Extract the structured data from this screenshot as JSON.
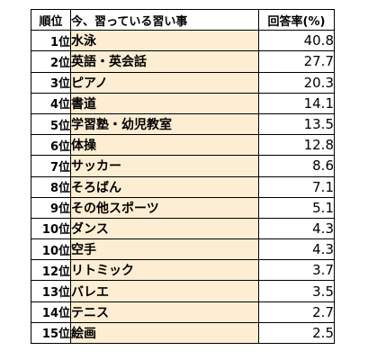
{
  "header": {
    "rank": "順位",
    "item": "今、習っている習い事",
    "rate": "回答率(%)"
  },
  "rows": [
    {
      "rank": "1位",
      "item": "水泳",
      "rate": "40.8"
    },
    {
      "rank": "2位",
      "item": "英語・英会話",
      "rate": "27.7"
    },
    {
      "rank": "3位",
      "item": "ピアノ",
      "rate": "20.3"
    },
    {
      "rank": "4位",
      "item": "書道",
      "rate": "14.1"
    },
    {
      "rank": "5位",
      "item": "学習塾・幼児教室",
      "rate": "13.5"
    },
    {
      "rank": "6位",
      "item": "体操",
      "rate": "12.8"
    },
    {
      "rank": "7位",
      "item": "サッカー",
      "rate": "8.6"
    },
    {
      "rank": "8位",
      "item": "そろばん",
      "rate": "7.1"
    },
    {
      "rank": "9位",
      "item": "その他スポーツ",
      "rate": "5.1"
    },
    {
      "rank": "10位",
      "item": "ダンス",
      "rate": "4.3"
    },
    {
      "rank": "10位",
      "item": "空手",
      "rate": "4.3"
    },
    {
      "rank": "12位",
      "item": "リトミック",
      "rate": "3.7"
    },
    {
      "rank": "13位",
      "item": "バレエ",
      "rate": "3.5"
    },
    {
      "rank": "14位",
      "item": "テニス",
      "rate": "2.7"
    },
    {
      "rank": "15位",
      "item": "絵画",
      "rate": "2.5"
    }
  ],
  "colors": {
    "item_cell_fill": "#fdeed3",
    "border": "#000000"
  }
}
